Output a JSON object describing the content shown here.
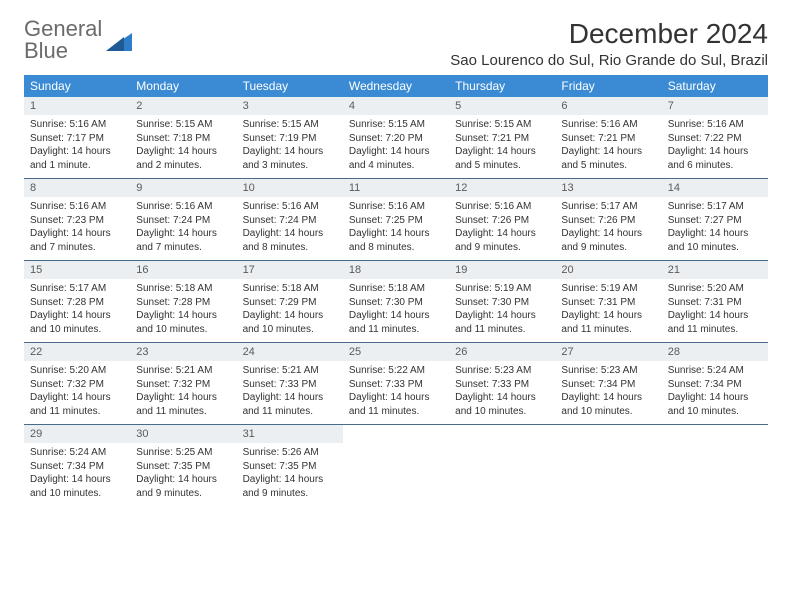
{
  "logo": {
    "line1": "General",
    "line2": "Blue"
  },
  "title": "December 2024",
  "location": "Sao Lourenco do Sul, Rio Grande do Sul, Brazil",
  "weekdays": [
    "Sunday",
    "Monday",
    "Tuesday",
    "Wednesday",
    "Thursday",
    "Friday",
    "Saturday"
  ],
  "colors": {
    "header_bg": "#3b8bd4",
    "header_text": "#ffffff",
    "daynum_bg": "#eceff2",
    "daynum_text": "#5a5a5a",
    "body_text": "#333333",
    "week_border": "#4a6a8a",
    "logo_gray": "#6b6b6b",
    "logo_blue": "#2d7dc8",
    "page_bg": "#ffffff"
  },
  "typography": {
    "title_fontsize": 28,
    "location_fontsize": 15,
    "weekday_fontsize": 12,
    "daynum_fontsize": 11,
    "body_fontsize": 10,
    "logo_fontsize": 22
  },
  "layout": {
    "columns": 7,
    "rows": 5,
    "cell_padding": 6
  },
  "days": [
    {
      "n": "1",
      "sr": "Sunrise: 5:16 AM",
      "ss": "Sunset: 7:17 PM",
      "dl": "Daylight: 14 hours and 1 minute."
    },
    {
      "n": "2",
      "sr": "Sunrise: 5:15 AM",
      "ss": "Sunset: 7:18 PM",
      "dl": "Daylight: 14 hours and 2 minutes."
    },
    {
      "n": "3",
      "sr": "Sunrise: 5:15 AM",
      "ss": "Sunset: 7:19 PM",
      "dl": "Daylight: 14 hours and 3 minutes."
    },
    {
      "n": "4",
      "sr": "Sunrise: 5:15 AM",
      "ss": "Sunset: 7:20 PM",
      "dl": "Daylight: 14 hours and 4 minutes."
    },
    {
      "n": "5",
      "sr": "Sunrise: 5:15 AM",
      "ss": "Sunset: 7:21 PM",
      "dl": "Daylight: 14 hours and 5 minutes."
    },
    {
      "n": "6",
      "sr": "Sunrise: 5:16 AM",
      "ss": "Sunset: 7:21 PM",
      "dl": "Daylight: 14 hours and 5 minutes."
    },
    {
      "n": "7",
      "sr": "Sunrise: 5:16 AM",
      "ss": "Sunset: 7:22 PM",
      "dl": "Daylight: 14 hours and 6 minutes."
    },
    {
      "n": "8",
      "sr": "Sunrise: 5:16 AM",
      "ss": "Sunset: 7:23 PM",
      "dl": "Daylight: 14 hours and 7 minutes."
    },
    {
      "n": "9",
      "sr": "Sunrise: 5:16 AM",
      "ss": "Sunset: 7:24 PM",
      "dl": "Daylight: 14 hours and 7 minutes."
    },
    {
      "n": "10",
      "sr": "Sunrise: 5:16 AM",
      "ss": "Sunset: 7:24 PM",
      "dl": "Daylight: 14 hours and 8 minutes."
    },
    {
      "n": "11",
      "sr": "Sunrise: 5:16 AM",
      "ss": "Sunset: 7:25 PM",
      "dl": "Daylight: 14 hours and 8 minutes."
    },
    {
      "n": "12",
      "sr": "Sunrise: 5:16 AM",
      "ss": "Sunset: 7:26 PM",
      "dl": "Daylight: 14 hours and 9 minutes."
    },
    {
      "n": "13",
      "sr": "Sunrise: 5:17 AM",
      "ss": "Sunset: 7:26 PM",
      "dl": "Daylight: 14 hours and 9 minutes."
    },
    {
      "n": "14",
      "sr": "Sunrise: 5:17 AM",
      "ss": "Sunset: 7:27 PM",
      "dl": "Daylight: 14 hours and 10 minutes."
    },
    {
      "n": "15",
      "sr": "Sunrise: 5:17 AM",
      "ss": "Sunset: 7:28 PM",
      "dl": "Daylight: 14 hours and 10 minutes."
    },
    {
      "n": "16",
      "sr": "Sunrise: 5:18 AM",
      "ss": "Sunset: 7:28 PM",
      "dl": "Daylight: 14 hours and 10 minutes."
    },
    {
      "n": "17",
      "sr": "Sunrise: 5:18 AM",
      "ss": "Sunset: 7:29 PM",
      "dl": "Daylight: 14 hours and 10 minutes."
    },
    {
      "n": "18",
      "sr": "Sunrise: 5:18 AM",
      "ss": "Sunset: 7:30 PM",
      "dl": "Daylight: 14 hours and 11 minutes."
    },
    {
      "n": "19",
      "sr": "Sunrise: 5:19 AM",
      "ss": "Sunset: 7:30 PM",
      "dl": "Daylight: 14 hours and 11 minutes."
    },
    {
      "n": "20",
      "sr": "Sunrise: 5:19 AM",
      "ss": "Sunset: 7:31 PM",
      "dl": "Daylight: 14 hours and 11 minutes."
    },
    {
      "n": "21",
      "sr": "Sunrise: 5:20 AM",
      "ss": "Sunset: 7:31 PM",
      "dl": "Daylight: 14 hours and 11 minutes."
    },
    {
      "n": "22",
      "sr": "Sunrise: 5:20 AM",
      "ss": "Sunset: 7:32 PM",
      "dl": "Daylight: 14 hours and 11 minutes."
    },
    {
      "n": "23",
      "sr": "Sunrise: 5:21 AM",
      "ss": "Sunset: 7:32 PM",
      "dl": "Daylight: 14 hours and 11 minutes."
    },
    {
      "n": "24",
      "sr": "Sunrise: 5:21 AM",
      "ss": "Sunset: 7:33 PM",
      "dl": "Daylight: 14 hours and 11 minutes."
    },
    {
      "n": "25",
      "sr": "Sunrise: 5:22 AM",
      "ss": "Sunset: 7:33 PM",
      "dl": "Daylight: 14 hours and 11 minutes."
    },
    {
      "n": "26",
      "sr": "Sunrise: 5:23 AM",
      "ss": "Sunset: 7:33 PM",
      "dl": "Daylight: 14 hours and 10 minutes."
    },
    {
      "n": "27",
      "sr": "Sunrise: 5:23 AM",
      "ss": "Sunset: 7:34 PM",
      "dl": "Daylight: 14 hours and 10 minutes."
    },
    {
      "n": "28",
      "sr": "Sunrise: 5:24 AM",
      "ss": "Sunset: 7:34 PM",
      "dl": "Daylight: 14 hours and 10 minutes."
    },
    {
      "n": "29",
      "sr": "Sunrise: 5:24 AM",
      "ss": "Sunset: 7:34 PM",
      "dl": "Daylight: 14 hours and 10 minutes."
    },
    {
      "n": "30",
      "sr": "Sunrise: 5:25 AM",
      "ss": "Sunset: 7:35 PM",
      "dl": "Daylight: 14 hours and 9 minutes."
    },
    {
      "n": "31",
      "sr": "Sunrise: 5:26 AM",
      "ss": "Sunset: 7:35 PM",
      "dl": "Daylight: 14 hours and 9 minutes."
    }
  ]
}
